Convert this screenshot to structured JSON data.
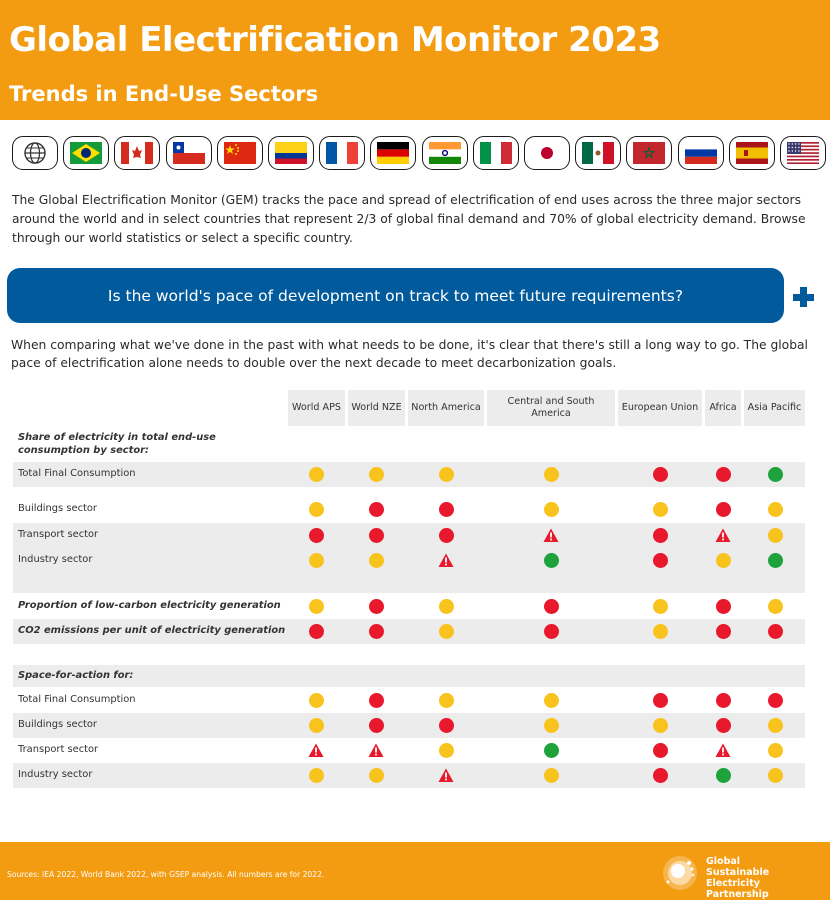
{
  "header": {
    "title": "Global Electrification Monitor 2023",
    "subtitle": "Trends in End-Use Sectors"
  },
  "flags": [
    {
      "name": "world",
      "icon": "globe-icon"
    },
    {
      "name": "brazil",
      "icon": "flag-brazil-icon"
    },
    {
      "name": "canada",
      "icon": "flag-canada-icon"
    },
    {
      "name": "chile",
      "icon": "flag-chile-icon"
    },
    {
      "name": "china",
      "icon": "flag-china-icon"
    },
    {
      "name": "colombia",
      "icon": "flag-colombia-icon"
    },
    {
      "name": "france",
      "icon": "flag-france-icon"
    },
    {
      "name": "germany",
      "icon": "flag-germany-icon"
    },
    {
      "name": "india",
      "icon": "flag-india-icon"
    },
    {
      "name": "italy",
      "icon": "flag-italy-icon"
    },
    {
      "name": "japan",
      "icon": "flag-japan-icon"
    },
    {
      "name": "mexico",
      "icon": "flag-mexico-icon"
    },
    {
      "name": "morocco",
      "icon": "flag-morocco-icon"
    },
    {
      "name": "russia",
      "icon": "flag-russia-icon"
    },
    {
      "name": "spain",
      "icon": "flag-spain-icon"
    },
    {
      "name": "usa",
      "icon": "flag-usa-icon"
    }
  ],
  "intro": "The Global Electrification Monitor (GEM) tracks the pace and spread of electrification of end uses across the three major sectors around the world and in select countries that represent 2/3 of global final demand and 70% of global electricity demand. Browse through our world statistics or select a specific country.",
  "question": "Is the world's pace of development on track to meet future requirements?",
  "answer": "When comparing what we've done in the past with what needs to be done, it's clear that there's still a long way to go. The global pace of electrification alone needs to double over the next decade to meet decarbonization goals.",
  "table": {
    "columns": [
      "World APS",
      "World NZE",
      "North America",
      "Central and South America",
      "European Union",
      "Africa",
      "Asia Pacific"
    ],
    "section1": "Share of electricity in total end-use consumption by sector:",
    "rows1": [
      {
        "label": "Total Final Consumption",
        "values": [
          "yellow",
          "yellow",
          "yellow",
          "yellow",
          "red",
          "red",
          "green"
        ]
      },
      {
        "label": "Buildings sector",
        "values": [
          "yellow",
          "red",
          "red",
          "yellow",
          "yellow",
          "red",
          "yellow"
        ]
      },
      {
        "label": "Transport sector",
        "values": [
          "red",
          "red",
          "red",
          "warning",
          "red",
          "warning",
          "yellow"
        ]
      },
      {
        "label": "Industry sector",
        "values": [
          "yellow",
          "yellow",
          "warning",
          "green",
          "red",
          "yellow",
          "green"
        ]
      }
    ],
    "row_low_carbon": {
      "label": "Proportion of low-carbon electricity generation",
      "values": [
        "yellow",
        "red",
        "yellow",
        "red",
        "yellow",
        "red",
        "yellow"
      ]
    },
    "row_co2": {
      "label": "CO2 emissions per unit of electricity generation",
      "values": [
        "red",
        "red",
        "yellow",
        "red",
        "yellow",
        "red",
        "red"
      ]
    },
    "section2": "Space-for-action for:",
    "rows2": [
      {
        "label": "Total Final Consumption",
        "values": [
          "yellow",
          "red",
          "yellow",
          "yellow",
          "red",
          "red",
          "red"
        ]
      },
      {
        "label": "Buildings sector",
        "values": [
          "yellow",
          "red",
          "red",
          "yellow",
          "yellow",
          "red",
          "yellow"
        ]
      },
      {
        "label": "Transport sector",
        "values": [
          "warning",
          "warning",
          "yellow",
          "green",
          "red",
          "warning",
          "yellow"
        ]
      },
      {
        "label": "Industry sector",
        "values": [
          "yellow",
          "yellow",
          "warning",
          "yellow",
          "red",
          "green",
          "yellow"
        ]
      }
    ]
  },
  "status_colors": {
    "yellow": "#f9c31e",
    "red": "#e8192c",
    "green": "#1ea33c"
  },
  "brand_colors": {
    "orange": "#f39c12",
    "blue": "#005a9c"
  },
  "footer": {
    "source": "Sources: IEA 2022, World Bank 2022, with GSEP analysis. All numbers are for 2022.",
    "logo_line1": "Global",
    "logo_line2": "Sustainable Electricity",
    "logo_line3": "Partnership"
  }
}
